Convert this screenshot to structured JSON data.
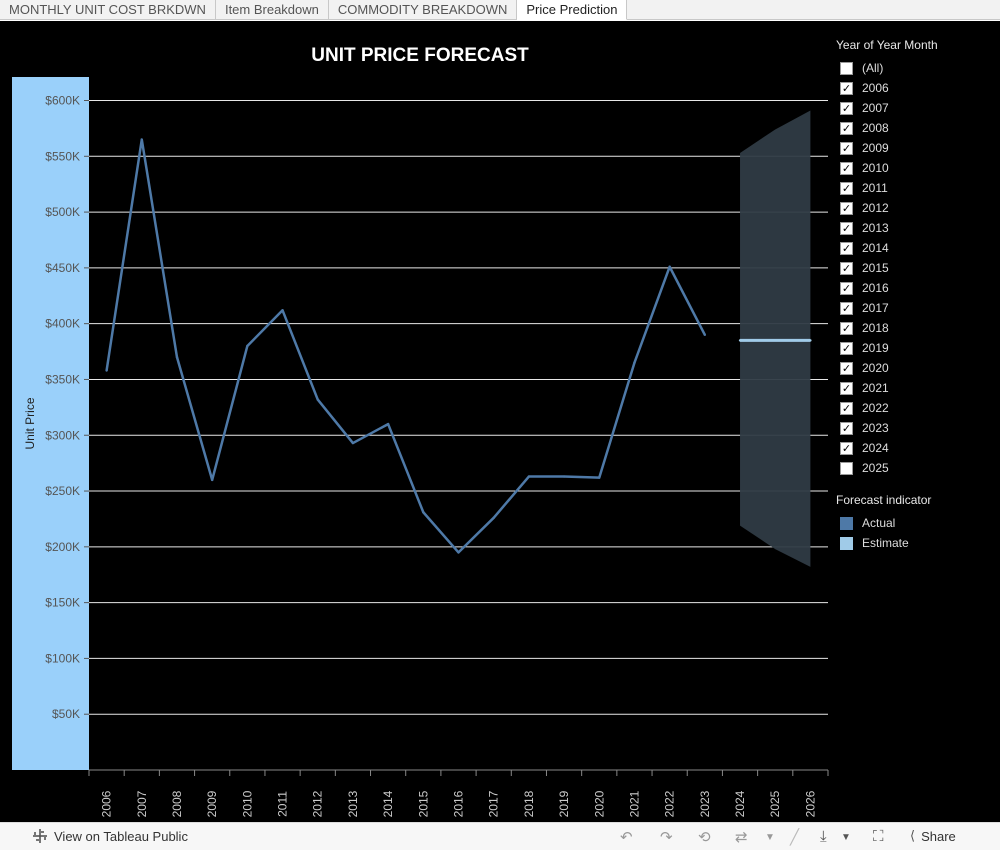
{
  "tabs": [
    {
      "label": "MONTHLY UNIT COST BRKDWN",
      "active": false
    },
    {
      "label": "Item Breakdown",
      "active": false
    },
    {
      "label": "COMMODITY BREAKDOWN",
      "active": false
    },
    {
      "label": "Price Prediction",
      "active": true
    }
  ],
  "chart_data": {
    "type": "line",
    "title": "UNIT PRICE FORECAST",
    "ylabel": "Unit Price",
    "xlabel": "",
    "x": [
      "2006",
      "2007",
      "2008",
      "2009",
      "2010",
      "2011",
      "2012",
      "2013",
      "2014",
      "2015",
      "2016",
      "2017",
      "2018",
      "2019",
      "2020",
      "2021",
      "2022",
      "2023",
      "2024",
      "2025",
      "2026"
    ],
    "ylim": [
      0,
      620000
    ],
    "yticks": [
      50000,
      100000,
      150000,
      200000,
      250000,
      300000,
      350000,
      400000,
      450000,
      500000,
      550000,
      600000
    ],
    "ytick_labels": [
      "$50K",
      "$100K",
      "$150K",
      "$200K",
      "$250K",
      "$300K",
      "$350K",
      "$400K",
      "$450K",
      "$500K",
      "$550K",
      "$600K"
    ],
    "series": [
      {
        "name": "Actual",
        "color": "#4e79a7",
        "x": [
          "2006",
          "2007",
          "2008",
          "2009",
          "2010",
          "2011",
          "2012",
          "2013",
          "2014",
          "2015",
          "2016",
          "2017",
          "2018",
          "2019",
          "2020",
          "2021",
          "2022",
          "2023"
        ],
        "values": [
          358000,
          565000,
          370000,
          260000,
          380000,
          412000,
          332000,
          293000,
          310000,
          231000,
          195000,
          226000,
          263000,
          263000,
          262000,
          365000,
          451000,
          390000
        ]
      },
      {
        "name": "Estimate",
        "color": "#a0cbe8",
        "x": [
          "2024",
          "2026"
        ],
        "values": [
          385000,
          385000
        ]
      }
    ],
    "prediction_band": {
      "x": [
        "2024",
        "2025",
        "2026"
      ],
      "upper": [
        553000,
        574000,
        591000
      ],
      "lower": [
        219000,
        198000,
        182000
      ],
      "color": "#2f3b44"
    },
    "grid": true,
    "legend_position": "right"
  },
  "filters": {
    "year_title": "Year of Year Month",
    "years": [
      {
        "label": "(All)",
        "checked": false
      },
      {
        "label": "2006",
        "checked": true
      },
      {
        "label": "2007",
        "checked": true
      },
      {
        "label": "2008",
        "checked": true
      },
      {
        "label": "2009",
        "checked": true
      },
      {
        "label": "2010",
        "checked": true
      },
      {
        "label": "2011",
        "checked": true
      },
      {
        "label": "2012",
        "checked": true
      },
      {
        "label": "2013",
        "checked": true
      },
      {
        "label": "2014",
        "checked": true
      },
      {
        "label": "2015",
        "checked": true
      },
      {
        "label": "2016",
        "checked": true
      },
      {
        "label": "2017",
        "checked": true
      },
      {
        "label": "2018",
        "checked": true
      },
      {
        "label": "2019",
        "checked": true
      },
      {
        "label": "2020",
        "checked": true
      },
      {
        "label": "2021",
        "checked": true
      },
      {
        "label": "2022",
        "checked": true
      },
      {
        "label": "2023",
        "checked": true
      },
      {
        "label": "2024",
        "checked": true
      },
      {
        "label": "2025",
        "checked": false
      }
    ],
    "legend_title": "Forecast indicator",
    "legend": [
      {
        "label": "Actual",
        "color": "#4e79a7"
      },
      {
        "label": "Estimate",
        "color": "#a0cbe8"
      }
    ]
  },
  "footer": {
    "view_label": "View on Tableau Public",
    "share_label": "Share"
  }
}
